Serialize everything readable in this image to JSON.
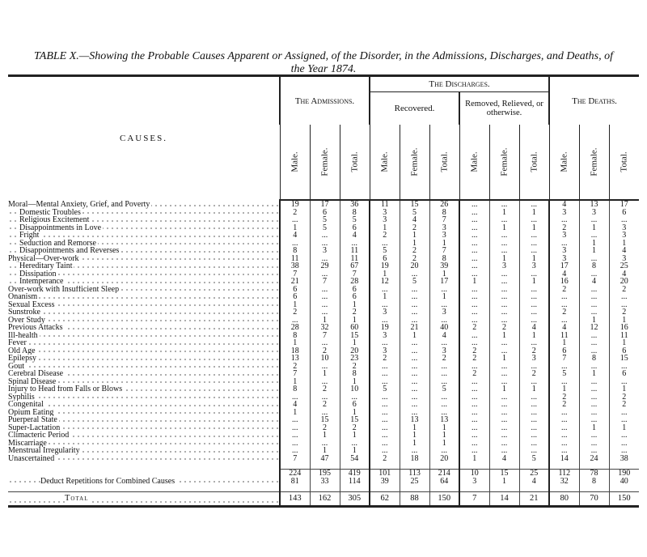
{
  "title": "TABLE X.—Showing the Probable Causes Apparent or Assigned, of the Disorder, in the Admissions, Discharges, and Deaths, of the Year 1874.",
  "header": {
    "causes": "CAUSES.",
    "admissions": "The Admissions.",
    "discharges": "The Discharges.",
    "recovered": "Recovered.",
    "removed": "Removed, Relieved, or otherwise.",
    "deaths": "The Deaths.",
    "columns": [
      [
        "Male.",
        "Female.",
        "Total."
      ],
      [
        "Male.",
        "Female.",
        "Total."
      ],
      [
        "Male.",
        "Female.",
        "Total."
      ],
      [
        "Male.",
        "Female.",
        "Total."
      ]
    ]
  },
  "rows": [
    {
      "label": "Moral—Mental Anxiety, Grief, and Poverty",
      "cells": [
        19,
        17,
        36,
        11,
        15,
        26,
        "...",
        "...",
        "...",
        4,
        13,
        17
      ]
    },
    {
      "label": "Domestic Troubles",
      "cells": [
        2,
        6,
        8,
        3,
        5,
        8,
        "...",
        1,
        1,
        3,
        3,
        6
      ]
    },
    {
      "label": "Religious Excitement",
      "cells": [
        "...",
        5,
        5,
        3,
        4,
        7,
        "...",
        "...",
        "...",
        "...",
        "...",
        "..."
      ]
    },
    {
      "label": "Disappointments in Love",
      "cells": [
        1,
        5,
        6,
        1,
        2,
        3,
        "...",
        1,
        1,
        2,
        1,
        3
      ]
    },
    {
      "label": "Fright",
      "cells": [
        4,
        "...",
        4,
        2,
        1,
        3,
        "...",
        "...",
        "...",
        3,
        "...",
        3
      ]
    },
    {
      "label": "Seduction and Remorse",
      "cells": [
        "...",
        "...",
        "...",
        "...",
        1,
        1,
        "...",
        "...",
        "...",
        "...",
        1,
        1
      ]
    },
    {
      "label": "Disappointments and Reverses",
      "cells": [
        8,
        3,
        11,
        5,
        2,
        7,
        "...",
        "...",
        "...",
        3,
        1,
        4
      ]
    },
    {
      "label": "Physical—Over-work",
      "cells": [
        11,
        "...",
        11,
        6,
        2,
        8,
        "...",
        1,
        1,
        3,
        "...",
        3
      ]
    },
    {
      "label": "Hereditary Taint",
      "cells": [
        38,
        29,
        67,
        19,
        20,
        39,
        "...",
        3,
        3,
        17,
        8,
        25
      ]
    },
    {
      "label": "Dissipation",
      "cells": [
        7,
        "...",
        7,
        1,
        "...",
        1,
        "...",
        "...",
        "...",
        4,
        "...",
        4
      ]
    },
    {
      "label": "Intemperance",
      "cells": [
        21,
        7,
        28,
        12,
        5,
        17,
        1,
        "...",
        1,
        16,
        4,
        20
      ]
    },
    {
      "label": "Over-work with Insufficient Sleep",
      "cells": [
        6,
        "...",
        6,
        "...",
        "...",
        "...",
        "...",
        "...",
        "...",
        2,
        "...",
        2
      ]
    },
    {
      "label": "Onanism",
      "cells": [
        6,
        "...",
        6,
        1,
        "...",
        1,
        "...",
        "...",
        "...",
        "...",
        "...",
        "..."
      ]
    },
    {
      "label": "Sexual Excess",
      "cells": [
        1,
        "...",
        1,
        "...",
        "...",
        "...",
        "...",
        "...",
        "...",
        "...",
        "...",
        "..."
      ]
    },
    {
      "label": "Sunstroke",
      "cells": [
        2,
        "...",
        2,
        3,
        "...",
        3,
        "...",
        "...",
        "...",
        2,
        "...",
        2
      ]
    },
    {
      "label": "Over Study",
      "cells": [
        "...",
        1,
        1,
        "...",
        "...",
        "...",
        "...",
        "...",
        "...",
        "...",
        1,
        1
      ]
    },
    {
      "label": "Previous Attacks",
      "cells": [
        28,
        32,
        60,
        19,
        21,
        40,
        2,
        2,
        4,
        4,
        12,
        16
      ]
    },
    {
      "label": "Ill-health",
      "cells": [
        8,
        7,
        15,
        3,
        1,
        4,
        "...",
        1,
        1,
        11,
        "...",
        11
      ]
    },
    {
      "label": "Fever",
      "cells": [
        1,
        "...",
        1,
        "...",
        "...",
        "...",
        "...",
        "...",
        "...",
        1,
        "...",
        1
      ]
    },
    {
      "label": "Old Age",
      "cells": [
        18,
        2,
        20,
        3,
        "...",
        3,
        2,
        "...",
        2,
        6,
        "...",
        6
      ]
    },
    {
      "label": "Epilepsy",
      "cells": [
        13,
        10,
        23,
        2,
        "...",
        2,
        2,
        1,
        3,
        7,
        8,
        15
      ]
    },
    {
      "label": "Gout",
      "cells": [
        2,
        "...",
        2,
        "...",
        "...",
        "...",
        "...",
        "...",
        "...",
        "...",
        "...",
        "..."
      ]
    },
    {
      "label": "Cerebral Disease",
      "cells": [
        7,
        1,
        8,
        "...",
        "...",
        "...",
        2,
        "...",
        2,
        5,
        1,
        6
      ]
    },
    {
      "label": "Spinal Disease",
      "cells": [
        1,
        "...",
        1,
        "...",
        "...",
        "...",
        "...",
        "...",
        "...",
        "...",
        "...",
        "..."
      ]
    },
    {
      "label": "Injury to Head from Falls or Blows",
      "cells": [
        8,
        2,
        10,
        5,
        "...",
        5,
        "...",
        1,
        1,
        1,
        "...",
        1
      ]
    },
    {
      "label": "Syphilis",
      "cells": [
        "...",
        "...",
        "...",
        "...",
        "...",
        "...",
        "...",
        "...",
        "...",
        2,
        "...",
        2
      ]
    },
    {
      "label": "Congenital",
      "cells": [
        4,
        2,
        6,
        "...",
        "...",
        "...",
        "...",
        "...",
        "...",
        2,
        "...",
        2
      ]
    },
    {
      "label": "Opium Eating",
      "cells": [
        1,
        "...",
        1,
        "...",
        "...",
        "...",
        "...",
        "...",
        "...",
        "...",
        "...",
        "..."
      ]
    },
    {
      "label": "Puerperal State",
      "cells": [
        "...",
        15,
        15,
        "...",
        13,
        13,
        "...",
        "...",
        "...",
        "...",
        "...",
        "..."
      ]
    },
    {
      "label": "Super-Lactation",
      "cells": [
        "...",
        2,
        2,
        "...",
        1,
        1,
        "...",
        "...",
        "...",
        "...",
        1,
        1
      ]
    },
    {
      "label": "Climacteric Period",
      "cells": [
        "...",
        1,
        1,
        "...",
        1,
        1,
        "...",
        "...",
        "...",
        "...",
        "...",
        "..."
      ]
    },
    {
      "label": "Miscarriage",
      "cells": [
        "...",
        "...",
        "...",
        "...",
        1,
        1,
        "...",
        "...",
        "...",
        "...",
        "...",
        "..."
      ]
    },
    {
      "label": "Menstrual Irregularity",
      "cells": [
        "...",
        1,
        1,
        "...",
        "...",
        "...",
        "...",
        "...",
        "...",
        "...",
        "...",
        "..."
      ]
    },
    {
      "label": "Unascertained",
      "cells": [
        7,
        47,
        54,
        2,
        18,
        20,
        1,
        4,
        5,
        14,
        24,
        38
      ]
    }
  ],
  "subtotal": [
    224,
    195,
    419,
    101,
    113,
    214,
    10,
    15,
    25,
    112,
    78,
    190
  ],
  "deduct": {
    "label": "Deduct Repetitions for Combined Causes",
    "cells": [
      81,
      33,
      114,
      39,
      25,
      64,
      3,
      1,
      4,
      32,
      8,
      40
    ]
  },
  "total": {
    "label": "Total",
    "cells": [
      143,
      162,
      305,
      62,
      88,
      150,
      7,
      14,
      21,
      80,
      70,
      150
    ]
  }
}
